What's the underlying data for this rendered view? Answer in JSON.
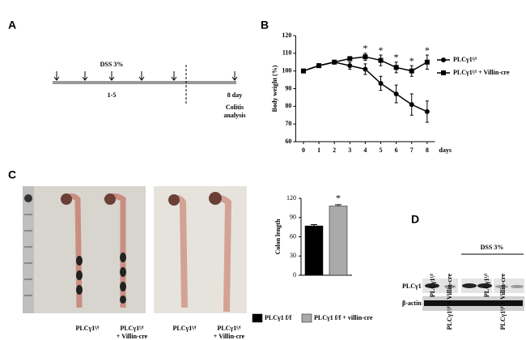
{
  "panels": {
    "a": "A",
    "b": "B",
    "c": "C",
    "d": "D"
  },
  "timeline": {
    "treatment": "DSS 3%",
    "days": "1-5",
    "endpoint": "8 day",
    "analysis": [
      "Colitis",
      "analysis"
    ]
  },
  "photo_labels": [
    [
      "PLCγ1ᶠ/ᶠ"
    ],
    [
      "PLCγ1ᶠ/ᶠ",
      "+ Villin-cre"
    ],
    [
      "PLCγ1ᶠ/ᶠ"
    ],
    [
      "PLCγ1ᶠ/ᶠ",
      "+ Villin-cre"
    ]
  ],
  "western_blot": {
    "treatment": "DSS 3%",
    "lanes": [
      "PLCγ1ᶠ/ᶠ",
      "PLCγ1ᶠ/ᶠ + Villin-cre",
      "PLCγ1ᶠ/ᶠ",
      "PLCγ1ᶠ/ᶠ + Villin-cre"
    ],
    "rows": [
      "PLCγ1",
      "β-actin"
    ]
  },
  "chart_data": [
    {
      "type": "line",
      "x_label": "days",
      "y_label": "Body weight (%)",
      "x": [
        0,
        1,
        2,
        3,
        4,
        5,
        6,
        7,
        8
      ],
      "xlim": [
        -0.5,
        8.5
      ],
      "xticks": [
        0,
        1,
        2,
        3,
        4,
        5,
        6,
        7,
        8
      ],
      "ylim": [
        60,
        120
      ],
      "yticks": [
        60,
        70,
        80,
        90,
        100,
        110,
        120
      ],
      "series": [
        {
          "name": "PLCγ1ᶠ/ᶠ",
          "color": "#000000",
          "marker": "circle",
          "values": [
            100,
            103,
            105,
            103,
            101,
            93,
            87,
            81,
            77
          ],
          "errors": [
            0,
            1,
            1,
            2,
            3,
            4,
            5,
            6,
            6
          ]
        },
        {
          "name": "PLCγ1ᶠ/ᶠ + Villin-cre",
          "color": "#000000",
          "marker": "square",
          "values": [
            100,
            103,
            105,
            107,
            108,
            106,
            102,
            100,
            105
          ],
          "errors": [
            0,
            1,
            1,
            1,
            2,
            3,
            3,
            3,
            4
          ]
        }
      ],
      "annotations": {
        "x": [
          4,
          5,
          6,
          7,
          8
        ],
        "text": "*"
      }
    },
    {
      "type": "bar",
      "y_label": "Colon length",
      "ylim": [
        0,
        120
      ],
      "yticks": [
        0,
        30,
        60,
        90,
        120
      ],
      "series": [
        {
          "name": "PLCγ1 f/f",
          "color": "#000000",
          "values": [
            77
          ],
          "errors": [
            2
          ]
        },
        {
          "name": "PLCγ1 f/f + villin-cre",
          "color": "#aaaaaa",
          "values": [
            108
          ],
          "errors": [
            2
          ]
        }
      ],
      "annotation": "*"
    }
  ]
}
